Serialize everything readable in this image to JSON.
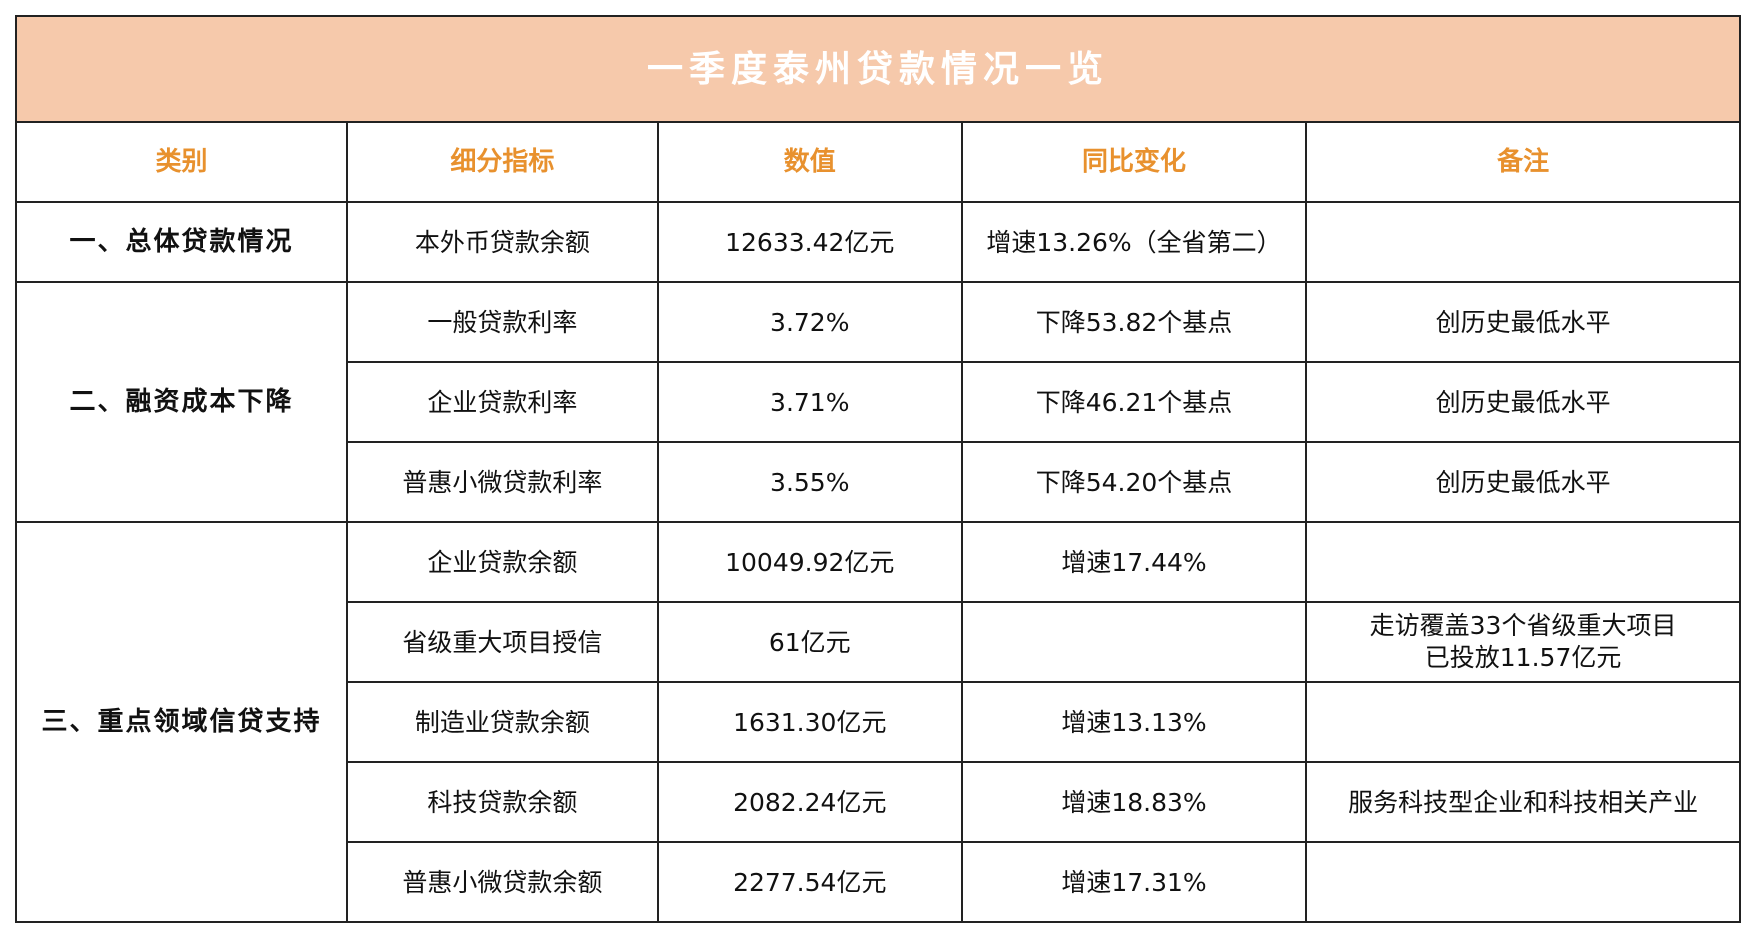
{
  "title": "一季度泰州贷款情况一览",
  "headers": {
    "category": "类别",
    "indicator": "细分指标",
    "value": "数值",
    "change": "同比变化",
    "note": "备注"
  },
  "sections": [
    {
      "category": "一、总体贷款情况",
      "rows": [
        {
          "indicator": "本外币贷款余额",
          "value": "12633.42亿元",
          "change": "增速13.26%（全省第二）",
          "note": ""
        }
      ]
    },
    {
      "category": "二、融资成本下降",
      "rows": [
        {
          "indicator": "一般贷款利率",
          "value": "3.72%",
          "change": "下降53.82个基点",
          "note": "创历史最低水平"
        },
        {
          "indicator": "企业贷款利率",
          "value": "3.71%",
          "change": "下降46.21个基点",
          "note": "创历史最低水平"
        },
        {
          "indicator": "普惠小微贷款利率",
          "value": "3.55%",
          "change": "下降54.20个基点",
          "note": "创历史最低水平"
        }
      ]
    },
    {
      "category": "三、重点领域信贷支持",
      "rows": [
        {
          "indicator": "企业贷款余额",
          "value": "10049.92亿元",
          "change": "增速17.44%",
          "note": ""
        },
        {
          "indicator": "省级重大项目授信",
          "value": "61亿元",
          "change": "",
          "note": "走访覆盖33个省级重大项目",
          "note2": "已投放11.57亿元"
        },
        {
          "indicator": "制造业贷款余额",
          "value": "1631.30亿元",
          "change": "增速13.13%",
          "note": ""
        },
        {
          "indicator": "科技贷款余额",
          "value": "2082.24亿元",
          "change": "增速18.83%",
          "note": "服务科技型企业和科技相关产业"
        },
        {
          "indicator": "普惠小微贷款余额",
          "value": "2277.54亿元",
          "change": "增速17.31%",
          "note": ""
        }
      ]
    }
  ]
}
